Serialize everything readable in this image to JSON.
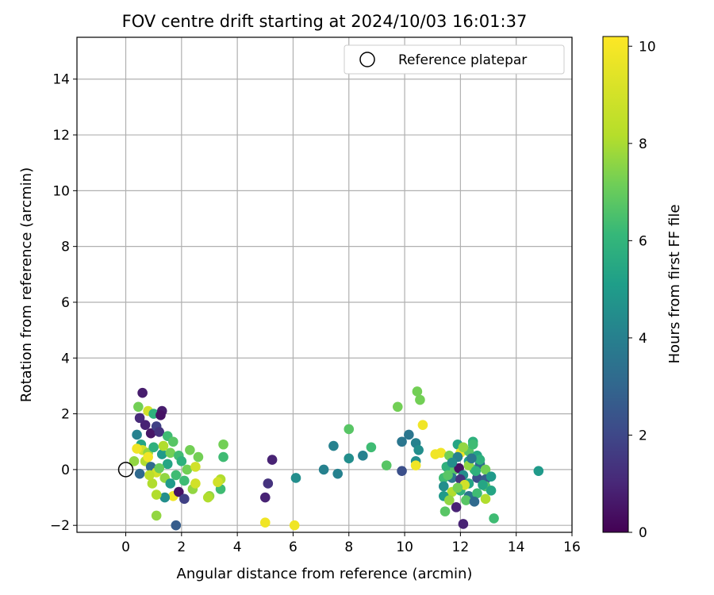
{
  "chart_data": {
    "type": "scatter",
    "title": "FOV centre drift starting at 2024/10/03 16:01:37",
    "xlabel": "Angular distance from reference (arcmin)",
    "ylabel": "Rotation from reference (arcmin)",
    "xlim": [
      -1.75,
      16
    ],
    "ylim": [
      -2.25,
      15.5
    ],
    "xticks": [
      0,
      2,
      4,
      6,
      8,
      10,
      12,
      14,
      16
    ],
    "yticks": [
      -2,
      0,
      2,
      4,
      6,
      8,
      10,
      12,
      14
    ],
    "grid": true,
    "legend": {
      "position": "top-right",
      "entries": [
        "Reference platepar"
      ]
    },
    "reference_point": {
      "x": 0,
      "y": 0
    },
    "colorbar": {
      "label": "Hours from first FF file",
      "range": [
        0,
        10.2
      ],
      "ticks": [
        0,
        2,
        4,
        6,
        8,
        10
      ],
      "colormap": "viridis"
    },
    "points": [
      {
        "x": 0.6,
        "y": 2.75,
        "h": 0.8
      },
      {
        "x": 0.5,
        "y": 1.85,
        "h": 1.2
      },
      {
        "x": 0.45,
        "y": 2.25,
        "h": 8.0
      },
      {
        "x": 0.8,
        "y": 2.1,
        "h": 9.5
      },
      {
        "x": 1.0,
        "y": 2.0,
        "h": 6.5
      },
      {
        "x": 1.3,
        "y": 2.1,
        "h": 0.8
      },
      {
        "x": 1.25,
        "y": 1.95,
        "h": 0.5
      },
      {
        "x": 0.4,
        "y": 1.25,
        "h": 4.5
      },
      {
        "x": 0.7,
        "y": 1.6,
        "h": 1.0
      },
      {
        "x": 0.9,
        "y": 1.3,
        "h": 0.6
      },
      {
        "x": 1.1,
        "y": 1.55,
        "h": 2.0
      },
      {
        "x": 1.2,
        "y": 1.35,
        "h": 1.5
      },
      {
        "x": 1.5,
        "y": 1.2,
        "h": 7.0
      },
      {
        "x": 1.7,
        "y": 1.0,
        "h": 7.5
      },
      {
        "x": 0.55,
        "y": 0.9,
        "h": 6.0
      },
      {
        "x": 0.6,
        "y": 0.7,
        "h": 9.5
      },
      {
        "x": 0.4,
        "y": 0.75,
        "h": 10.0
      },
      {
        "x": 0.8,
        "y": 0.6,
        "h": 8.5
      },
      {
        "x": 1.0,
        "y": 0.8,
        "h": 6.5
      },
      {
        "x": 1.3,
        "y": 0.55,
        "h": 5.5
      },
      {
        "x": 1.6,
        "y": 0.6,
        "h": 8.0
      },
      {
        "x": 1.9,
        "y": 0.5,
        "h": 7.0
      },
      {
        "x": 1.5,
        "y": 0.2,
        "h": 6.0
      },
      {
        "x": 0.7,
        "y": 0.3,
        "h": 9.0
      },
      {
        "x": 0.9,
        "y": 0.1,
        "h": 3.5
      },
      {
        "x": 0.8,
        "y": 0.45,
        "h": 10.0
      },
      {
        "x": 1.1,
        "y": -0.1,
        "h": 9.5
      },
      {
        "x": 1.4,
        "y": -0.3,
        "h": 8.5
      },
      {
        "x": 1.8,
        "y": -0.2,
        "h": 7.0
      },
      {
        "x": 2.0,
        "y": 0.3,
        "h": 6.5
      },
      {
        "x": 2.2,
        "y": 0.0,
        "h": 8.0
      },
      {
        "x": 2.1,
        "y": -0.4,
        "h": 7.0
      },
      {
        "x": 2.5,
        "y": 0.1,
        "h": 9.5
      },
      {
        "x": 2.6,
        "y": 0.45,
        "h": 8.0
      },
      {
        "x": 2.3,
        "y": 0.7,
        "h": 8.0
      },
      {
        "x": 0.95,
        "y": -0.5,
        "h": 9.0
      },
      {
        "x": 1.6,
        "y": -0.5,
        "h": 5.5
      },
      {
        "x": 1.7,
        "y": -0.95,
        "h": 10.0
      },
      {
        "x": 1.4,
        "y": -1.0,
        "h": 5.0
      },
      {
        "x": 1.1,
        "y": -0.9,
        "h": 9.0
      },
      {
        "x": 1.9,
        "y": -0.8,
        "h": 0.5
      },
      {
        "x": 2.1,
        "y": -1.05,
        "h": 2.0
      },
      {
        "x": 2.4,
        "y": -0.7,
        "h": 8.5
      },
      {
        "x": 2.5,
        "y": -0.5,
        "h": 9.5
      },
      {
        "x": 1.1,
        "y": -1.65,
        "h": 8.5
      },
      {
        "x": 1.8,
        "y": -2.0,
        "h": 3.0
      },
      {
        "x": 0.5,
        "y": -0.15,
        "h": 3.5
      },
      {
        "x": 0.85,
        "y": -0.2,
        "h": 9.2
      },
      {
        "x": 1.2,
        "y": 0.05,
        "h": 7.8
      },
      {
        "x": 0.3,
        "y": 0.3,
        "h": 8.5
      },
      {
        "x": 1.35,
        "y": 0.85,
        "h": 9.0
      },
      {
        "x": 3.5,
        "y": 0.9,
        "h": 8.0
      },
      {
        "x": 3.5,
        "y": 0.45,
        "h": 7.0
      },
      {
        "x": 3.4,
        "y": -0.35,
        "h": 9.0
      },
      {
        "x": 3.4,
        "y": -0.7,
        "h": 7.0
      },
      {
        "x": 3.0,
        "y": -0.95,
        "h": 8.5
      },
      {
        "x": 3.3,
        "y": -0.45,
        "h": 9.5
      },
      {
        "x": 2.95,
        "y": -1.0,
        "h": 9.0
      },
      {
        "x": 5.25,
        "y": 0.35,
        "h": 1.0
      },
      {
        "x": 5.1,
        "y": -0.5,
        "h": 1.5
      },
      {
        "x": 5.0,
        "y": -1.0,
        "h": 1.0
      },
      {
        "x": 6.1,
        "y": -0.3,
        "h": 5.0
      },
      {
        "x": 5.0,
        "y": -1.9,
        "h": 10.0
      },
      {
        "x": 6.05,
        "y": -2.0,
        "h": 10.0
      },
      {
        "x": 7.1,
        "y": 0.0,
        "h": 4.5
      },
      {
        "x": 7.45,
        "y": 0.85,
        "h": 4.5
      },
      {
        "x": 7.6,
        "y": -0.15,
        "h": 4.5
      },
      {
        "x": 8.0,
        "y": 1.45,
        "h": 7.5
      },
      {
        "x": 8.0,
        "y": 0.4,
        "h": 5.0
      },
      {
        "x": 8.5,
        "y": 0.5,
        "h": 4.5
      },
      {
        "x": 8.8,
        "y": 0.8,
        "h": 7.0
      },
      {
        "x": 9.35,
        "y": 0.15,
        "h": 7.5
      },
      {
        "x": 9.75,
        "y": 2.25,
        "h": 8.0
      },
      {
        "x": 9.9,
        "y": 1.0,
        "h": 4.0
      },
      {
        "x": 9.9,
        "y": -0.05,
        "h": 2.5
      },
      {
        "x": 10.15,
        "y": 1.25,
        "h": 4.0
      },
      {
        "x": 10.4,
        "y": 0.95,
        "h": 4.5
      },
      {
        "x": 10.45,
        "y": 2.8,
        "h": 8.0
      },
      {
        "x": 10.55,
        "y": 2.5,
        "h": 8.0
      },
      {
        "x": 10.5,
        "y": 0.7,
        "h": 5.0
      },
      {
        "x": 10.4,
        "y": 0.3,
        "h": 5.0
      },
      {
        "x": 10.4,
        "y": 0.15,
        "h": 10.0
      },
      {
        "x": 10.65,
        "y": 1.6,
        "h": 10.0
      },
      {
        "x": 11.1,
        "y": 0.55,
        "h": 10.0
      },
      {
        "x": 11.3,
        "y": 0.6,
        "h": 10.0
      },
      {
        "x": 11.6,
        "y": 0.5,
        "h": 8.0
      },
      {
        "x": 11.9,
        "y": 0.9,
        "h": 6.0
      },
      {
        "x": 12.0,
        "y": 0.6,
        "h": 10.0
      },
      {
        "x": 12.3,
        "y": 0.65,
        "h": 7.5
      },
      {
        "x": 12.45,
        "y": 1.0,
        "h": 6.5
      },
      {
        "x": 12.1,
        "y": 0.8,
        "h": 8.5
      },
      {
        "x": 12.3,
        "y": 0.3,
        "h": 5.5
      },
      {
        "x": 12.6,
        "y": 0.5,
        "h": 6.0
      },
      {
        "x": 11.5,
        "y": 0.1,
        "h": 6.5
      },
      {
        "x": 11.8,
        "y": 0.0,
        "h": 7.5
      },
      {
        "x": 11.95,
        "y": 0.05,
        "h": 0.5
      },
      {
        "x": 12.1,
        "y": -0.2,
        "h": 5.0
      },
      {
        "x": 12.5,
        "y": 0.0,
        "h": 7.0
      },
      {
        "x": 12.7,
        "y": 0.2,
        "h": 3.5
      },
      {
        "x": 12.9,
        "y": 0.0,
        "h": 8.0
      },
      {
        "x": 11.4,
        "y": -0.3,
        "h": 7.0
      },
      {
        "x": 11.7,
        "y": -0.3,
        "h": 4.0
      },
      {
        "x": 12.0,
        "y": -0.35,
        "h": 1.5
      },
      {
        "x": 12.3,
        "y": -0.5,
        "h": 6.0
      },
      {
        "x": 12.6,
        "y": -0.3,
        "h": 2.5
      },
      {
        "x": 12.9,
        "y": -0.35,
        "h": 3.0
      },
      {
        "x": 13.1,
        "y": -0.25,
        "h": 5.5
      },
      {
        "x": 11.4,
        "y": -0.6,
        "h": 5.0
      },
      {
        "x": 11.7,
        "y": -0.8,
        "h": 9.0
      },
      {
        "x": 12.0,
        "y": -0.75,
        "h": 6.5
      },
      {
        "x": 12.3,
        "y": -0.95,
        "h": 4.0
      },
      {
        "x": 12.6,
        "y": -0.85,
        "h": 7.0
      },
      {
        "x": 12.9,
        "y": -0.6,
        "h": 7.5
      },
      {
        "x": 13.1,
        "y": -0.75,
        "h": 6.0
      },
      {
        "x": 11.4,
        "y": -0.95,
        "h": 5.5
      },
      {
        "x": 11.6,
        "y": -1.1,
        "h": 8.5
      },
      {
        "x": 11.85,
        "y": -1.35,
        "h": 1.0
      },
      {
        "x": 12.2,
        "y": -1.1,
        "h": 7.5
      },
      {
        "x": 12.5,
        "y": -1.15,
        "h": 3.5
      },
      {
        "x": 12.9,
        "y": -1.05,
        "h": 9.0
      },
      {
        "x": 11.45,
        "y": -1.5,
        "h": 7.5
      },
      {
        "x": 12.1,
        "y": -1.95,
        "h": 1.0
      },
      {
        "x": 13.2,
        "y": -1.75,
        "h": 7.0
      },
      {
        "x": 12.45,
        "y": 0.9,
        "h": 7.0
      },
      {
        "x": 11.9,
        "y": 0.45,
        "h": 4.5
      },
      {
        "x": 12.3,
        "y": 0.15,
        "h": 8.5
      },
      {
        "x": 11.7,
        "y": 0.25,
        "h": 5.0
      },
      {
        "x": 12.55,
        "y": -0.05,
        "h": 6.5
      },
      {
        "x": 12.15,
        "y": -0.55,
        "h": 9.5
      },
      {
        "x": 12.8,
        "y": -0.55,
        "h": 6.0
      },
      {
        "x": 11.9,
        "y": -0.65,
        "h": 8.0
      },
      {
        "x": 12.7,
        "y": 0.35,
        "h": 6.5
      },
      {
        "x": 11.55,
        "y": -0.2,
        "h": 7.5
      },
      {
        "x": 12.4,
        "y": 0.4,
        "h": 4.0
      },
      {
        "x": 14.8,
        "y": -0.05,
        "h": 5.5
      }
    ]
  }
}
